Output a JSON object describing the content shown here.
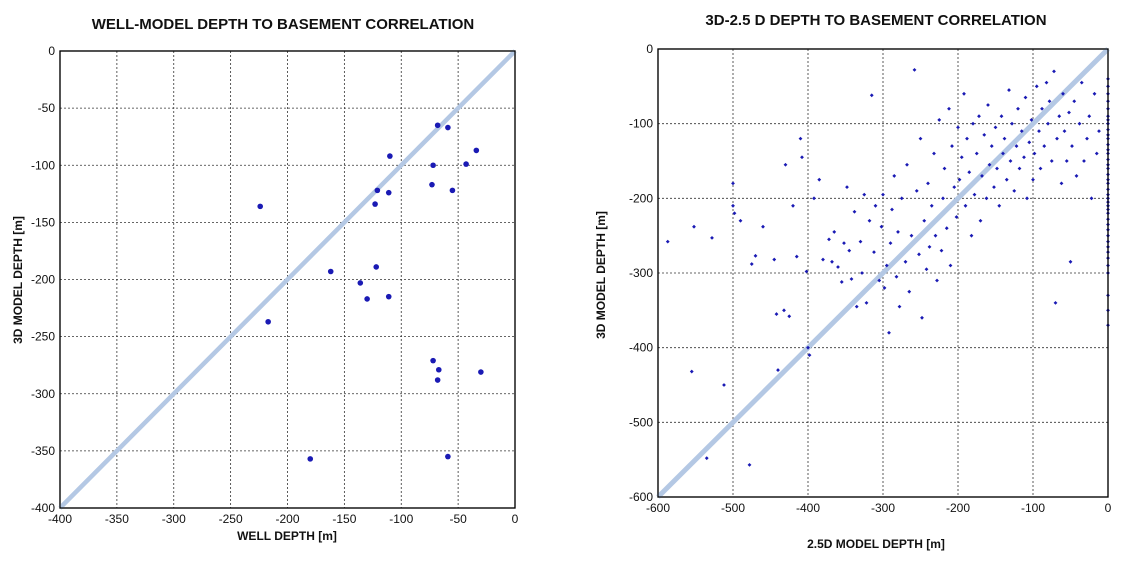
{
  "chart_data": [
    {
      "type": "scatter",
      "title": "WELL-MODEL DEPTH TO BASEMENT CORRELATION",
      "xlabel": "WELL DEPTH [m]",
      "ylabel": "3D MODEL DEPTH [m]",
      "xlim": [
        -400,
        0
      ],
      "ylim": [
        -400,
        0
      ],
      "xticks": [
        -400,
        -350,
        -300,
        -250,
        -200,
        -150,
        -100,
        -50,
        0
      ],
      "yticks": [
        0,
        -50,
        -100,
        -150,
        -200,
        -250,
        -300,
        -350,
        -400
      ],
      "grid": true,
      "reference_line": {
        "x": [
          -400,
          0
        ],
        "y": [
          -400,
          0
        ],
        "color": "#b4c8e4"
      },
      "marker_color": "#1a1ab4",
      "points": [
        [
          -224,
          -136
        ],
        [
          -217,
          -237
        ],
        [
          -180,
          -357
        ],
        [
          -162,
          -193
        ],
        [
          -136,
          -203
        ],
        [
          -130,
          -217
        ],
        [
          -123,
          -134
        ],
        [
          -122,
          -189
        ],
        [
          -121,
          -122
        ],
        [
          -111,
          -124
        ],
        [
          -110,
          -92
        ],
        [
          -111,
          -215
        ],
        [
          -73,
          -117
        ],
        [
          -72,
          -100
        ],
        [
          -72,
          -271
        ],
        [
          -68,
          -65
        ],
        [
          -67,
          -279
        ],
        [
          -68,
          -288
        ],
        [
          -59,
          -67
        ],
        [
          -59,
          -355
        ],
        [
          -55,
          -122
        ],
        [
          -43,
          -99
        ],
        [
          -34,
          -87
        ],
        [
          -30,
          -281
        ]
      ]
    },
    {
      "type": "scatter",
      "title": "3D-2.5 D DEPTH TO BASEMENT CORRELATION",
      "xlabel": "2.5D MODEL DEPTH [m]",
      "ylabel": "3D MODEL DEPTH [m]",
      "xlim": [
        -600,
        0
      ],
      "ylim": [
        -600,
        0
      ],
      "xticks": [
        -600,
        -500,
        -400,
        -300,
        -200,
        -100,
        0
      ],
      "yticks": [
        0,
        -100,
        -200,
        -300,
        -400,
        -500,
        -600
      ],
      "grid": true,
      "reference_line": {
        "x": [
          -600,
          0
        ],
        "y": [
          -600,
          0
        ],
        "color": "#b4c8e4"
      },
      "marker_color": "#1a1ab4",
      "points": [
        [
          -587,
          -258
        ],
        [
          -555,
          -432
        ],
        [
          -552,
          -238
        ],
        [
          -535,
          -548
        ],
        [
          -528,
          -253
        ],
        [
          -512,
          -450
        ],
        [
          -500,
          -180
        ],
        [
          -500,
          -210
        ],
        [
          -498,
          -220
        ],
        [
          -490,
          -230
        ],
        [
          -478,
          -557
        ],
        [
          -475,
          -288
        ],
        [
          -470,
          -277
        ],
        [
          -460,
          -238
        ],
        [
          -445,
          -282
        ],
        [
          -442,
          -355
        ],
        [
          -440,
          -430
        ],
        [
          -432,
          -350
        ],
        [
          -430,
          -155
        ],
        [
          -425,
          -358
        ],
        [
          -420,
          -210
        ],
        [
          -415,
          -278
        ],
        [
          -410,
          -120
        ],
        [
          -408,
          -145
        ],
        [
          -402,
          -298
        ],
        [
          -400,
          -400
        ],
        [
          -398,
          -410
        ],
        [
          -392,
          -200
        ],
        [
          -385,
          -175
        ],
        [
          -380,
          -282
        ],
        [
          -372,
          -255
        ],
        [
          -368,
          -285
        ],
        [
          -365,
          -245
        ],
        [
          -360,
          -292
        ],
        [
          -355,
          -312
        ],
        [
          -352,
          -260
        ],
        [
          -348,
          -185
        ],
        [
          -345,
          -270
        ],
        [
          -342,
          -308
        ],
        [
          -338,
          -218
        ],
        [
          -335,
          -345
        ],
        [
          -330,
          -258
        ],
        [
          -328,
          -300
        ],
        [
          -325,
          -195
        ],
        [
          -322,
          -340
        ],
        [
          -318,
          -230
        ],
        [
          -315,
          -62
        ],
        [
          -312,
          -272
        ],
        [
          -310,
          -210
        ],
        [
          -305,
          -310
        ],
        [
          -302,
          -238
        ],
        [
          -300,
          -195
        ],
        [
          -298,
          -320
        ],
        [
          -295,
          -290
        ],
        [
          -292,
          -380
        ],
        [
          -290,
          -260
        ],
        [
          -288,
          -215
        ],
        [
          -285,
          -170
        ],
        [
          -282,
          -305
        ],
        [
          -280,
          -245
        ],
        [
          -278,
          -345
        ],
        [
          -275,
          -200
        ],
        [
          -270,
          -285
        ],
        [
          -268,
          -155
        ],
        [
          -265,
          -325
        ],
        [
          -262,
          -250
        ],
        [
          -258,
          -28
        ],
        [
          -255,
          -190
        ],
        [
          -252,
          -275
        ],
        [
          -250,
          -120
        ],
        [
          -248,
          -360
        ],
        [
          -245,
          -230
        ],
        [
          -242,
          -295
        ],
        [
          -240,
          -180
        ],
        [
          -238,
          -265
        ],
        [
          -235,
          -210
        ],
        [
          -232,
          -140
        ],
        [
          -230,
          -250
        ],
        [
          -228,
          -310
        ],
        [
          -225,
          -95
        ],
        [
          -222,
          -270
        ],
        [
          -220,
          -200
        ],
        [
          -218,
          -160
        ],
        [
          -215,
          -240
        ],
        [
          -212,
          -80
        ],
        [
          -210,
          -290
        ],
        [
          -208,
          -130
        ],
        [
          -205,
          -185
        ],
        [
          -202,
          -225
        ],
        [
          -200,
          -105
        ],
        [
          -198,
          -175
        ],
        [
          -195,
          -145
        ],
        [
          -192,
          -60
        ],
        [
          -190,
          -210
        ],
        [
          -188,
          -120
        ],
        [
          -185,
          -165
        ],
        [
          -182,
          -250
        ],
        [
          -180,
          -100
        ],
        [
          -178,
          -195
        ],
        [
          -175,
          -140
        ],
        [
          -172,
          -90
        ],
        [
          -170,
          -230
        ],
        [
          -168,
          -170
        ],
        [
          -165,
          -115
        ],
        [
          -162,
          -200
        ],
        [
          -160,
          -75
        ],
        [
          -158,
          -155
        ],
        [
          -155,
          -130
        ],
        [
          -152,
          -185
        ],
        [
          -150,
          -105
        ],
        [
          -148,
          -160
        ],
        [
          -145,
          -210
        ],
        [
          -142,
          -90
        ],
        [
          -140,
          -140
        ],
        [
          -138,
          -120
        ],
        [
          -135,
          -175
        ],
        [
          -132,
          -55
        ],
        [
          -130,
          -150
        ],
        [
          -128,
          -100
        ],
        [
          -125,
          -190
        ],
        [
          -122,
          -130
        ],
        [
          -120,
          -80
        ],
        [
          -118,
          -160
        ],
        [
          -115,
          -110
        ],
        [
          -112,
          -145
        ],
        [
          -110,
          -65
        ],
        [
          -108,
          -200
        ],
        [
          -105,
          -125
        ],
        [
          -102,
          -95
        ],
        [
          -100,
          -175
        ],
        [
          -98,
          -140
        ],
        [
          -95,
          -50
        ],
        [
          -92,
          -110
        ],
        [
          -90,
          -160
        ],
        [
          -88,
          -80
        ],
        [
          -85,
          -130
        ],
        [
          -82,
          -45
        ],
        [
          -80,
          -100
        ],
        [
          -78,
          -70
        ],
        [
          -75,
          -150
        ],
        [
          -72,
          -30
        ],
        [
          -70,
          -340
        ],
        [
          -68,
          -120
        ],
        [
          -65,
          -90
        ],
        [
          -62,
          -180
        ],
        [
          -60,
          -60
        ],
        [
          -58,
          -110
        ],
        [
          -55,
          -150
        ],
        [
          -52,
          -85
        ],
        [
          -50,
          -285
        ],
        [
          -48,
          -130
        ],
        [
          -45,
          -70
        ],
        [
          -42,
          -170
        ],
        [
          -38,
          -100
        ],
        [
          -35,
          -45
        ],
        [
          -32,
          -150
        ],
        [
          -28,
          -120
        ],
        [
          -25,
          -90
        ],
        [
          -22,
          -200
        ],
        [
          -18,
          -60
        ],
        [
          -15,
          -140
        ],
        [
          -12,
          -110
        ],
        [
          0,
          -40
        ],
        [
          0,
          -50
        ],
        [
          0,
          -60
        ],
        [
          0,
          -70
        ],
        [
          0,
          -80
        ],
        [
          0,
          -90
        ],
        [
          0,
          -95
        ],
        [
          0,
          -100
        ],
        [
          0,
          -108
        ],
        [
          0,
          -115
        ],
        [
          0,
          -120
        ],
        [
          0,
          -128
        ],
        [
          0,
          -135
        ],
        [
          0,
          -140
        ],
        [
          0,
          -148
        ],
        [
          0,
          -155
        ],
        [
          0,
          -160
        ],
        [
          0,
          -168
        ],
        [
          0,
          -175
        ],
        [
          0,
          -180
        ],
        [
          0,
          -188
        ],
        [
          0,
          -195
        ],
        [
          0,
          -200
        ],
        [
          0,
          -205
        ],
        [
          0,
          -210
        ],
        [
          0,
          -215
        ],
        [
          0,
          -220
        ],
        [
          0,
          -228
        ],
        [
          0,
          -235
        ],
        [
          0,
          -242
        ],
        [
          0,
          -250
        ],
        [
          0,
          -258
        ],
        [
          0,
          -265
        ],
        [
          0,
          -272
        ],
        [
          0,
          -280
        ],
        [
          0,
          -290
        ],
        [
          0,
          -300
        ],
        [
          0,
          -330
        ],
        [
          0,
          -350
        ],
        [
          0,
          -370
        ]
      ]
    }
  ]
}
